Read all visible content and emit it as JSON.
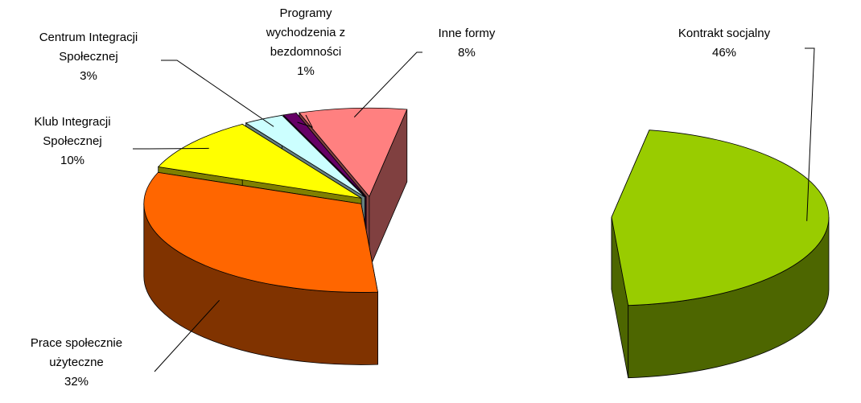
{
  "chart_data": {
    "type": "pie",
    "three_d": true,
    "categories": [
      "Kontrakt socjalny",
      "Prace społecznie użyteczne",
      "Klub Integracji Społecznej",
      "Centrum Integracji Społecznej",
      "Programy wychodzenia z bezdomności",
      "Inne formy"
    ],
    "values": [
      46,
      32,
      10,
      3,
      1,
      8
    ],
    "value_labels": [
      "46%",
      "32%",
      "10%",
      "3%",
      "1%",
      "8%"
    ],
    "colors": [
      "#99cc00",
      "#ff6600",
      "#ffff00",
      "#ccffff",
      "#660066",
      "#ff8080"
    ]
  }
}
